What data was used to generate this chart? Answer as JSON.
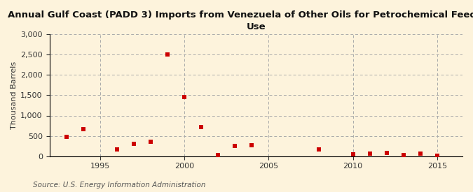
{
  "title": "Annual Gulf Coast (PADD 3) Imports from Venezuela of Other Oils for Petrochemical Feedstock\nUse",
  "ylabel": "Thousand Barrels",
  "source": "Source: U.S. Energy Information Administration",
  "background_color": "#fdf3dc",
  "marker_color": "#cc0000",
  "years": [
    1993,
    1994,
    1996,
    1997,
    1998,
    1999,
    2000,
    2001,
    2002,
    2003,
    2004,
    2008,
    2010,
    2011,
    2012,
    2013,
    2014,
    2015
  ],
  "values": [
    470,
    660,
    175,
    310,
    350,
    2500,
    1450,
    710,
    25,
    260,
    265,
    165,
    40,
    60,
    80,
    35,
    65,
    10
  ],
  "xlim": [
    1992,
    2016.5
  ],
  "ylim": [
    0,
    3000
  ],
  "yticks": [
    0,
    500,
    1000,
    1500,
    2000,
    2500,
    3000
  ],
  "xticks": [
    1995,
    2000,
    2005,
    2010,
    2015
  ],
  "grid_color": "#aaaaaa",
  "title_fontsize": 9.5,
  "axis_fontsize": 8,
  "source_fontsize": 7.5,
  "spine_color": "#000000"
}
